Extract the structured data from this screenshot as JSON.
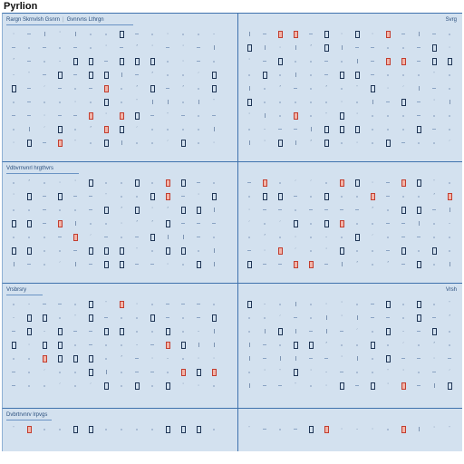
{
  "app": {
    "title": "Pyrlion"
  },
  "colors": {
    "background": "#d3e1ef",
    "divider": "#3f72ad",
    "header_text": "#2b4f7d",
    "glyph_light": "#7c93b1",
    "glyph_dark": "#1f3555",
    "alert": "#c23d2f"
  },
  "panes": [
    {
      "id": "p0",
      "header": [
        "Rargn Skrnvlsh Gsnrn",
        "Gvnrvns Lthrgn"
      ],
      "flag": "Svrg"
    },
    {
      "id": "p1",
      "header": [
        "",
        ""
      ],
      "flag": ""
    },
    {
      "id": "p2",
      "header": [
        "Vdbvrnvnrl hrgthvrs",
        ""
      ],
      "flag": ""
    },
    {
      "id": "p3",
      "header": [
        "",
        ""
      ],
      "flag": ""
    },
    {
      "id": "p4",
      "header": [
        "Vrsbrsry",
        ""
      ],
      "flag": "Vrsh"
    },
    {
      "id": "p5",
      "header": [
        "",
        ""
      ],
      "flag": ""
    },
    {
      "id": "p6",
      "header": [
        "Dvbrtrvnrv lrpvgs",
        ""
      ],
      "flag": ""
    },
    {
      "id": "p7",
      "header": [
        "",
        ""
      ],
      "flag": ""
    }
  ]
}
